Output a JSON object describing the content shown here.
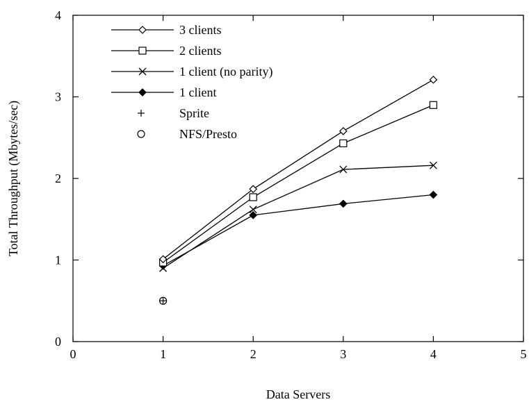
{
  "chart_data": {
    "type": "line",
    "title": "",
    "xlabel": "Data Servers",
    "ylabel": "Total Throughput (Mbytes/sec)",
    "xlim": [
      0,
      5
    ],
    "ylim": [
      0,
      4
    ],
    "xticks": [
      0,
      1,
      2,
      3,
      4,
      5
    ],
    "yticks": [
      0,
      1,
      2,
      3,
      4
    ],
    "grid": false,
    "legend_position": "top-left",
    "series": [
      {
        "name": "3 clients",
        "marker": "diamond-open",
        "line": true,
        "x": [
          1,
          2,
          3,
          4
        ],
        "y": [
          1.01,
          1.87,
          2.58,
          3.21
        ]
      },
      {
        "name": "2 clients",
        "marker": "square-open",
        "line": true,
        "x": [
          1,
          2,
          3,
          4
        ],
        "y": [
          0.97,
          1.77,
          2.43,
          2.9
        ]
      },
      {
        "name": "1 client (no parity)",
        "marker": "x",
        "line": true,
        "x": [
          1,
          2,
          3,
          4
        ],
        "y": [
          0.9,
          1.62,
          2.11,
          2.16
        ]
      },
      {
        "name": "1 client",
        "marker": "diamond-filled",
        "line": true,
        "x": [
          1,
          2,
          3,
          4
        ],
        "y": [
          0.93,
          1.55,
          1.69,
          1.8
        ]
      },
      {
        "name": "Sprite",
        "marker": "plus",
        "line": false,
        "x": [
          1
        ],
        "y": [
          0.5
        ]
      },
      {
        "name": "NFS/Presto",
        "marker": "circle-open",
        "line": false,
        "x": [
          1
        ],
        "y": [
          0.5
        ]
      }
    ]
  }
}
